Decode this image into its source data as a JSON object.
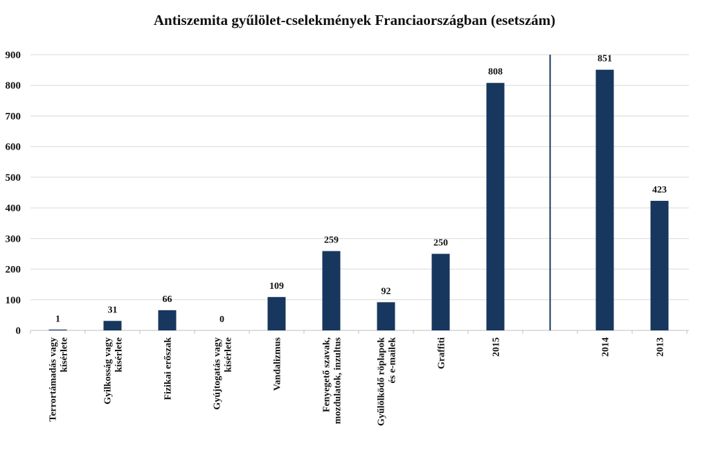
{
  "chart_data": {
    "type": "bar",
    "title": "Antiszemita gyűlölet-cselekmények Franciaországban (esetszám)",
    "xlabel": "",
    "ylabel": "",
    "ylim": [
      0,
      900
    ],
    "yticks": [
      0,
      100,
      200,
      300,
      400,
      500,
      600,
      700,
      800,
      900
    ],
    "grid": true,
    "legend": "none",
    "bar_color": "#17375e",
    "separator_color": "#17375e",
    "separator_after_category": "2015",
    "categories": [
      [
        "Terrortámadás vagy",
        "kísérlete"
      ],
      [
        "Gyilkosság vagy",
        "kísérlete"
      ],
      [
        "Fizikai erőszak"
      ],
      [
        "Gyújtogatás vagy",
        "kísérlete"
      ],
      [
        "Vandalizmus"
      ],
      [
        "Fenyegető szavak,",
        "mozdulatok, inzultus"
      ],
      [
        "Gyűlölködő röplapok",
        "és e-mailek"
      ],
      [
        "Graffiti"
      ],
      [
        "2015"
      ],
      [
        "2014"
      ],
      [
        "2013"
      ]
    ],
    "values": [
      1,
      31,
      66,
      0,
      109,
      259,
      92,
      250,
      808,
      851,
      423
    ],
    "data_labels": [
      "1",
      "31",
      "66",
      "0",
      "109",
      "259",
      "92",
      "250",
      "808",
      "851",
      "423"
    ]
  }
}
